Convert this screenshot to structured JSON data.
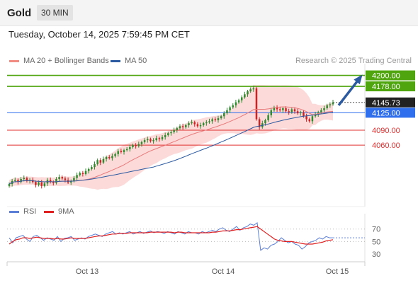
{
  "header": {
    "asset": "Gold",
    "interval": "30 MIN"
  },
  "datetime": "Tuesday, October 14, 2025 7:59:45 PM CET",
  "legend": {
    "bollinger": {
      "label": "MA 20 + Bollinger Bands",
      "color": "#f28b82"
    },
    "ma50": {
      "label": "MA 50",
      "color": "#2c5aa0"
    }
  },
  "credit": "Research © 2025 Trading Central",
  "rsi_legend": {
    "rsi": {
      "label": "RSI",
      "color": "#5b7fd6"
    },
    "ma9": {
      "label": "9MA",
      "color": "#e02020"
    }
  },
  "chart_data": [
    {
      "type": "candlestick",
      "ylim": [
        3965,
        4215
      ],
      "x_ticks": [
        "Oct 13",
        "Oct 14",
        "Oct 15"
      ],
      "current_price": {
        "label": "4145.73",
        "value": 4145.73
      },
      "levels": [
        {
          "label": "4200.00",
          "value": 4200,
          "color": "#4ea50d",
          "kind": "resistance"
        },
        {
          "label": "4178.00",
          "value": 4178,
          "color": "#4ea50d",
          "kind": "resistance"
        },
        {
          "label": "4125.00",
          "value": 4125,
          "color": "#2f6fed",
          "kind": "pivot"
        },
        {
          "label": "4090.00",
          "value": 4090,
          "color": "#e03030",
          "kind": "support"
        },
        {
          "label": "4060.00",
          "value": 4060,
          "color": "#e03030",
          "kind": "support"
        }
      ],
      "colors": {
        "up": "#2e8b2e",
        "down": "#d02020",
        "band": "#fbd4d4",
        "ma20": "#e87a7a",
        "ma50": "#2c5aa0",
        "arrow": "#2c5aa0"
      },
      "closes": [
        3982,
        3988,
        3990,
        3986,
        3992,
        3994,
        3988,
        3990,
        3986,
        3980,
        3985,
        3978,
        3983,
        3990,
        3986,
        3984,
        3992,
        3996,
        3993,
        3990,
        3985,
        3988,
        3994,
        4000,
        4004,
        4002,
        4008,
        4012,
        4016,
        4022,
        4030,
        4025,
        4032,
        4036,
        4034,
        4038,
        4042,
        4048,
        4046,
        4050,
        4052,
        4056,
        4060,
        4058,
        4062,
        4066,
        4070,
        4072,
        4068,
        4070,
        4074,
        4072,
        4076,
        4080,
        4084,
        4086,
        4090,
        4094,
        4098,
        4096,
        4100,
        4104,
        4106,
        4102,
        4098,
        4100,
        4104,
        4106,
        4108,
        4112,
        4110,
        4114,
        4118,
        4124,
        4130,
        4136,
        4140,
        4146,
        4150,
        4156,
        4162,
        4168,
        4172,
        4174,
        4112,
        4096,
        4104,
        4110,
        4120,
        4130,
        4136,
        4132,
        4130,
        4134,
        4128,
        4126,
        4132,
        4128,
        4124,
        4126,
        4118,
        4112,
        4108,
        4118,
        4122,
        4126,
        4130,
        4134,
        4140,
        4142,
        4146
      ]
    },
    {
      "type": "line",
      "ylim": [
        20,
        90
      ],
      "y_ticks": [
        30,
        50,
        70
      ],
      "series": [
        {
          "name": "RSI",
          "color": "#5b7fd6",
          "values": [
            56,
            48,
            56,
            58,
            60,
            54,
            50,
            58,
            60,
            56,
            52,
            56,
            54,
            52,
            58,
            50,
            55,
            56,
            58,
            52,
            54,
            56,
            54,
            58,
            60,
            62,
            60,
            58,
            62,
            64,
            66,
            62,
            64,
            62,
            64,
            66,
            62,
            64,
            66,
            63,
            65,
            67,
            64,
            66,
            65,
            63,
            66,
            64,
            62,
            66,
            64,
            62,
            66,
            64,
            64,
            62,
            66,
            64,
            66,
            68,
            66,
            70,
            72,
            68,
            66,
            70,
            74,
            68,
            72,
            74,
            78,
            76,
            80,
            36,
            40,
            38,
            44,
            46,
            50,
            56,
            52,
            48,
            50,
            46,
            44,
            38,
            42,
            48,
            50,
            52,
            56,
            54,
            58,
            56,
            56
          ]
        },
        {
          "name": "9MA",
          "color": "#e02020",
          "values": [
            46,
            50,
            53,
            54,
            56,
            56,
            55,
            56,
            57,
            56,
            55,
            55,
            55,
            54,
            55,
            54,
            54,
            55,
            56,
            55,
            55,
            55,
            55,
            56,
            57,
            58,
            59,
            59,
            60,
            61,
            62,
            62,
            63,
            63,
            63,
            64,
            64,
            64,
            64,
            64,
            64,
            65,
            65,
            65,
            65,
            65,
            65,
            65,
            64,
            65,
            65,
            64,
            64,
            64,
            64,
            64,
            64,
            64,
            64,
            65,
            65,
            66,
            67,
            67,
            67,
            68,
            69,
            69,
            70,
            71,
            72,
            73,
            74,
            70,
            66,
            62,
            58,
            54,
            52,
            51,
            50,
            50,
            50,
            49,
            48,
            47,
            46,
            46,
            46,
            47,
            48,
            49,
            51,
            52,
            53
          ]
        }
      ]
    }
  ]
}
